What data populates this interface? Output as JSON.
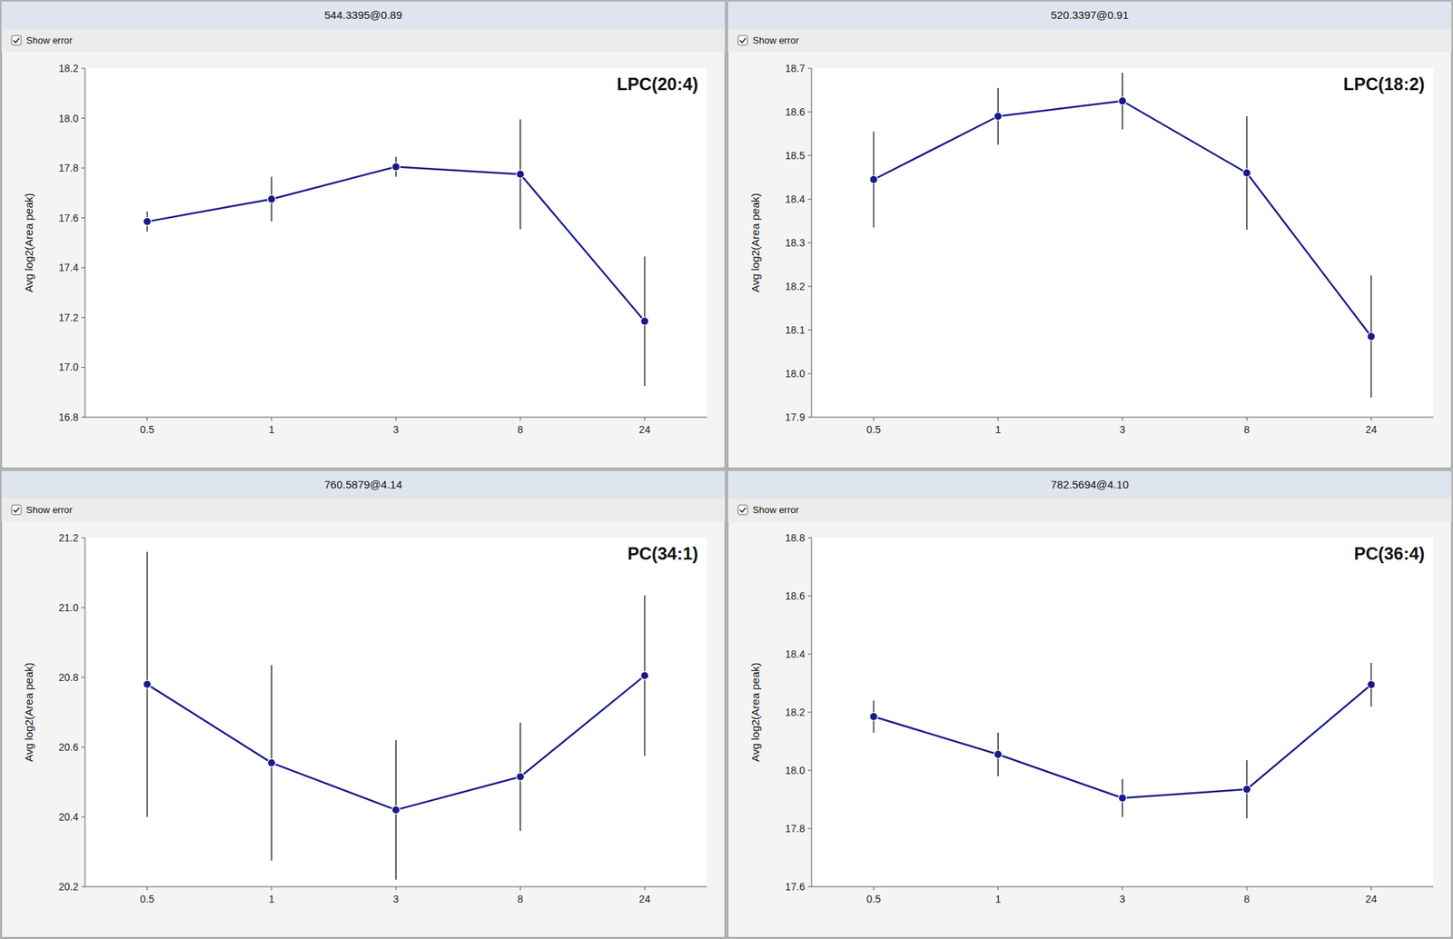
{
  "chart_data": [
    {
      "type": "line",
      "title": "544.3395@0.89",
      "subtitle": "Show error",
      "annotations": [
        "LPC(20:4)"
      ],
      "ylabel": "Avg log2(Area peak)",
      "grid": false,
      "categories": [
        "0.5",
        "1",
        "3",
        "8",
        "24"
      ],
      "series": [
        {
          "color": "#1a1a8c",
          "marker": "circle",
          "values": [
            17.585,
            17.675,
            17.805,
            17.775,
            17.185
          ],
          "errors": [
            0.04,
            0.09,
            0.04,
            0.22,
            0.26
          ]
        }
      ],
      "ylim": [
        16.8,
        18.2
      ],
      "yticks": [
        16.8,
        {
          "value": 17,
          "label": "17.0"
        },
        17.2,
        17.4,
        17.6,
        17.8,
        {
          "value": 18,
          "label": "18.0"
        },
        18.2
      ]
    },
    {
      "type": "line",
      "title": "520.3397@0.91",
      "subtitle": "Show error",
      "annotations": [
        "LPC(18:2)"
      ],
      "ylabel": "Avg log2(Area peak)",
      "grid": false,
      "categories": [
        "0.5",
        "1",
        "3",
        "8",
        "24"
      ],
      "series": [
        {
          "color": "#1a1a8c",
          "marker": "circle",
          "values": [
            18.445,
            18.59,
            18.625,
            18.46,
            18.085
          ],
          "errors": [
            0.11,
            0.065,
            0.065,
            0.13,
            0.14
          ]
        }
      ],
      "ylim": [
        17.9,
        18.7
      ],
      "yticks": [
        17.9,
        {
          "value": 18,
          "label": "18.0"
        },
        18.1,
        18.2,
        18.3,
        18.4,
        18.5,
        18.6,
        18.7
      ]
    },
    {
      "type": "line",
      "title": "760.5879@4.14",
      "subtitle": "Show error",
      "annotations": [
        "PC(34:1)"
      ],
      "ylabel": "Avg log2(Area peak)",
      "grid": false,
      "categories": [
        "0.5",
        "1",
        "3",
        "8",
        "24"
      ],
      "series": [
        {
          "color": "#1a1a8c",
          "marker": "circle",
          "values": [
            20.78,
            20.555,
            20.42,
            20.515,
            20.805
          ],
          "errors": [
            0.38,
            0.28,
            0.2,
            0.155,
            0.23
          ]
        }
      ],
      "ylim": [
        20.2,
        21.2
      ],
      "yticks": [
        20.2,
        20.4,
        20.6,
        20.8,
        {
          "value": 21,
          "label": "21.0"
        },
        21.2
      ]
    },
    {
      "type": "line",
      "title": "782.5694@4.10",
      "subtitle": "Show error",
      "annotations": [
        "PC(36:4)"
      ],
      "ylabel": "Avg log2(Area peak)",
      "grid": false,
      "categories": [
        "0.5",
        "1",
        "3",
        "8",
        "24"
      ],
      "series": [
        {
          "color": "#1a1a8c",
          "marker": "circle",
          "values": [
            18.185,
            18.055,
            17.905,
            17.935,
            18.295
          ],
          "errors": [
            0.055,
            0.075,
            0.065,
            0.1,
            0.075
          ]
        }
      ],
      "ylim": [
        17.6,
        18.8
      ],
      "yticks": [
        17.6,
        17.8,
        {
          "value": 18,
          "label": "18.0"
        },
        18.2,
        18.4,
        18.6,
        18.8
      ]
    }
  ]
}
